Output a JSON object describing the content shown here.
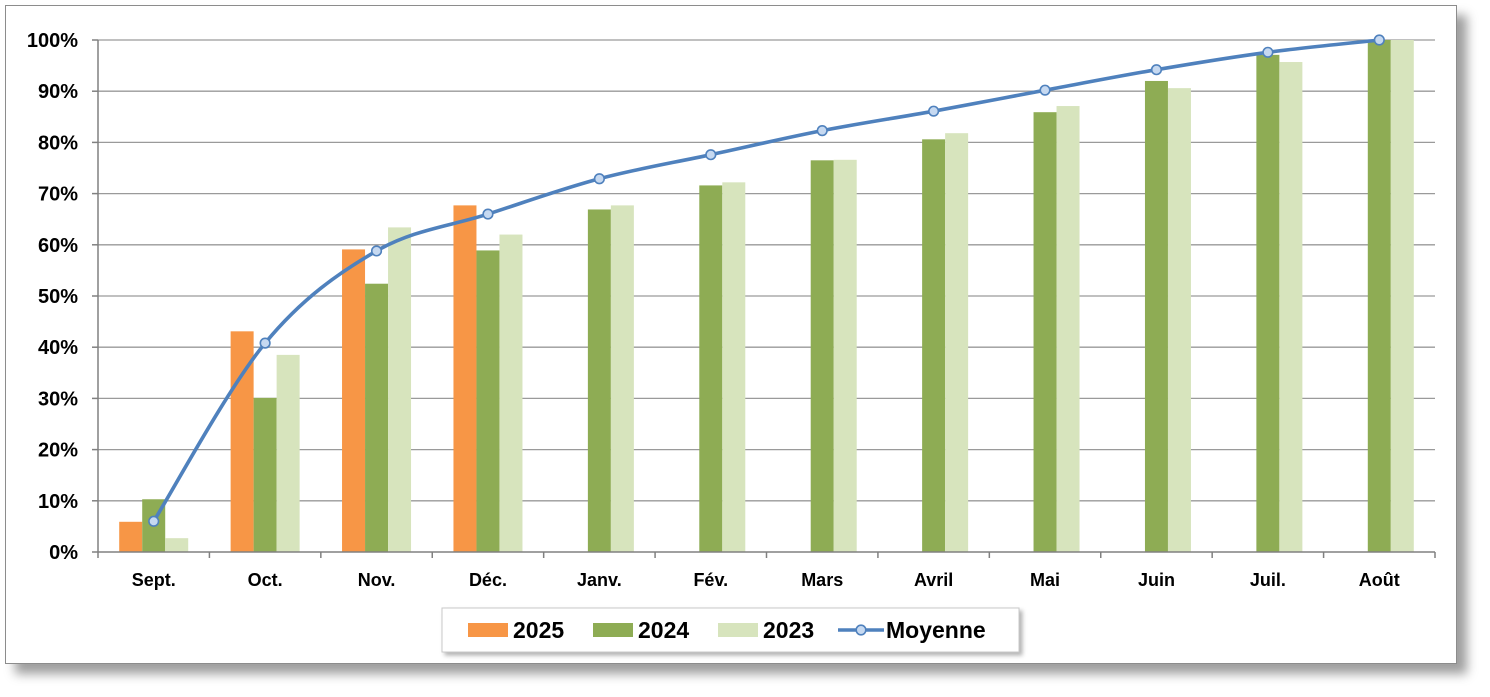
{
  "chart_data": {
    "type": "bar",
    "categories": [
      "Sept.",
      "Oct.",
      "Nov.",
      "Déc.",
      "Janv.",
      "Fév.",
      "Mars",
      "Avril",
      "Mai",
      "Juin",
      "Juil.",
      "Août"
    ],
    "series": [
      {
        "name": "2025",
        "kind": "bar",
        "color": "#f79646",
        "values": [
          5.9,
          43.1,
          59.1,
          67.7,
          null,
          null,
          null,
          null,
          null,
          null,
          null,
          null
        ]
      },
      {
        "name": "2024",
        "kind": "bar",
        "color": "#8eac54",
        "values": [
          10.3,
          30.1,
          52.4,
          58.9,
          66.9,
          71.6,
          76.5,
          80.6,
          85.9,
          92.0,
          97.1,
          100
        ]
      },
      {
        "name": "2023",
        "kind": "bar",
        "color": "#d7e4bd",
        "values": [
          2.7,
          38.5,
          63.4,
          62.0,
          67.7,
          72.2,
          76.6,
          81.8,
          87.1,
          90.6,
          95.7,
          100
        ]
      },
      {
        "name": "Moyenne",
        "kind": "line",
        "color": "#4f81bd",
        "values": [
          6.0,
          40.8,
          58.8,
          66.0,
          72.9,
          77.6,
          82.3,
          86.1,
          90.2,
          94.2,
          97.6,
          100
        ]
      }
    ],
    "yticks": [
      "0%",
      "10%",
      "20%",
      "30%",
      "40%",
      "50%",
      "60%",
      "70%",
      "80%",
      "90%",
      "100%"
    ],
    "ylim": [
      0,
      100
    ],
    "yunit": "%",
    "grid": true,
    "legend_position": "bottom",
    "title": "",
    "xlabel": "",
    "ylabel": ""
  }
}
